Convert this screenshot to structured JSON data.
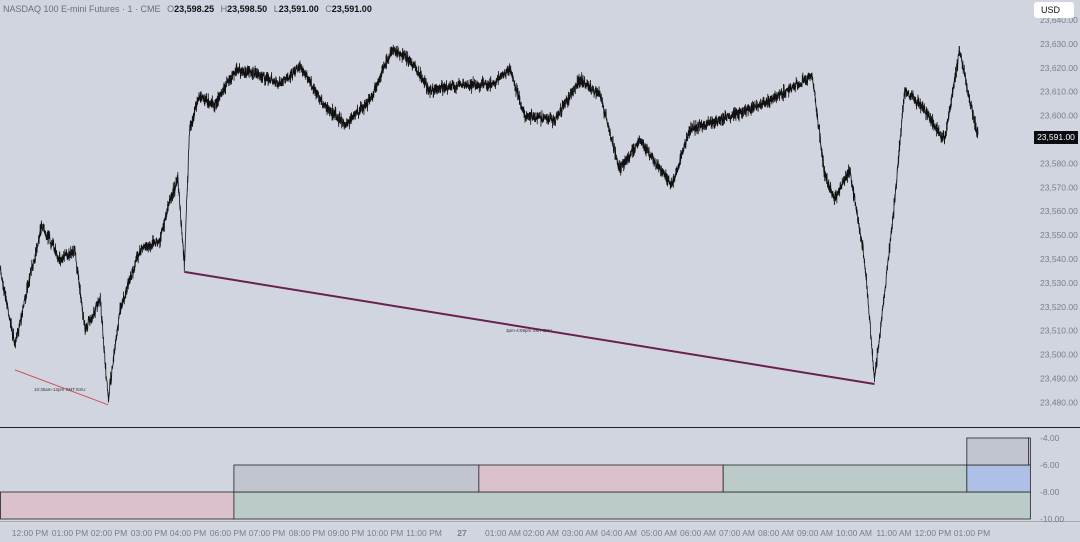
{
  "header": {
    "symbol": "NASDAQ 100 E-mini Futures · 1 · CME",
    "open_label": "O",
    "open": "23,598.25",
    "high_label": "H",
    "high": "23,598.50",
    "low_label": "L",
    "low": "23,591.00",
    "close_label": "C",
    "close": "23,591.00"
  },
  "currency": "USD",
  "last_price": "23,591.00",
  "colors": {
    "background": "#d1d5e0",
    "candles": "#111111",
    "trend_short": "#d0505a",
    "trend_long": "#6b1f4f",
    "box_pink": "#dbc1cb",
    "box_green": "#bacbca",
    "box_gray": "#c1c5d0",
    "box_blue": "#afc0e6"
  },
  "chart_data": {
    "type": "line",
    "price_axis": {
      "min": 23480,
      "max": 23640,
      "ticks": [
        "23,640.00",
        "23,630.00",
        "23,620.00",
        "23,610.00",
        "23,600.00",
        "23,580.00",
        "23,570.00",
        "23,560.00",
        "23,550.00",
        "23,540.00",
        "23,530.00",
        "23,520.00",
        "23,510.00",
        "23,500.00",
        "23,490.00",
        "23,480.00"
      ]
    },
    "time_axis": [
      "12:00 PM",
      "01:00 PM",
      "02:00 PM",
      "03:00 PM",
      "04:00 PM",
      "06:00 PM",
      "07:00 PM",
      "08:00 PM",
      "09:00 PM",
      "10:00 PM",
      "11:00 PM",
      "27",
      "01:00 AM",
      "02:00 AM",
      "03:00 AM",
      "04:00 AM",
      "05:00 AM",
      "06:00 AM",
      "07:00 AM",
      "08:00 AM",
      "09:00 AM",
      "10:00 AM",
      "11:00 AM",
      "12:00 PM",
      "01:00 PM"
    ],
    "series": [
      {
        "values": [
          [
            "26 11:15",
            23535.4
          ],
          [
            "26 11:37",
            23504.0
          ],
          [
            "26 11:52",
            23522.8
          ],
          [
            "26 12:18",
            23554.2
          ],
          [
            "26 12:46",
            23539.6
          ],
          [
            "26 13:08",
            23543.8
          ],
          [
            "26 13:24",
            23510.3
          ],
          [
            "26 13:47",
            23522.8
          ],
          [
            "26 13:59",
            23481.0
          ],
          [
            "26 14:17",
            23518.7
          ],
          [
            "26 14:47",
            23543.8
          ],
          [
            "26 15:18",
            23548.0
          ],
          [
            "26 15:33",
            23564.7
          ],
          [
            "26 15:45",
            23573.1
          ],
          [
            "26 15:55",
            23537.5
          ],
          [
            "26 16:03",
            23594.0
          ],
          [
            "26 16:18",
            23608.6
          ],
          [
            "26 16:41",
            23604.4
          ],
          [
            "26 18:11",
            23619.1
          ],
          [
            "26 18:49",
            23617.0
          ],
          [
            "26 19:19",
            23612.8
          ],
          [
            "26 19:50",
            23621.2
          ],
          [
            "26 20:20",
            23606.5
          ],
          [
            "26 20:59",
            23596.1
          ],
          [
            "26 21:37",
            23606.5
          ],
          [
            "26 22:10",
            23627.4
          ],
          [
            "26 22:38",
            23623.3
          ],
          [
            "26 23:08",
            23610.7
          ],
          [
            "26 23:54",
            23612.8
          ],
          [
            "27 00:40",
            23612.8
          ],
          [
            "27 01:10",
            23619.1
          ],
          [
            "27 01:33",
            23600.3
          ],
          [
            "27 02:19",
            23598.2
          ],
          [
            "27 02:57",
            23614.9
          ],
          [
            "27 03:28",
            23608.6
          ],
          [
            "27 03:58",
            23577.2
          ],
          [
            "27 04:29",
            23589.8
          ],
          [
            "27 05:18",
            23571.0
          ],
          [
            "27 05:45",
            23594.0
          ],
          [
            "27 06:31",
            23598.2
          ],
          [
            "27 07:32",
            23604.4
          ],
          [
            "27 08:18",
            23610.7
          ],
          [
            "27 08:52",
            23617.0
          ],
          [
            "27 09:11",
            23575.1
          ],
          [
            "27 09:26",
            23564.7
          ],
          [
            "27 09:49",
            23577.2
          ],
          [
            "27 10:12",
            23539.6
          ],
          [
            "27 10:27",
            23489.4
          ],
          [
            "27 10:43",
            23527.0
          ],
          [
            "27 10:58",
            23564.7
          ],
          [
            "27 11:13",
            23610.7
          ],
          [
            "27 11:44",
            23602.3
          ],
          [
            "27 12:14",
            23589.8
          ],
          [
            "27 12:37",
            23627.4
          ],
          [
            "27 12:52",
            23606.5
          ],
          [
            "27 13:05",
            23591.9
          ]
        ]
      }
    ],
    "trend_lines": [
      {
        "label": "10:30am-12pm SMT ESU",
        "from": [
          "26 11:37",
          23493.6
        ],
        "to": [
          "26 13:59",
          23479.0
        ],
        "color": "#d0505a"
      },
      {
        "label": "3pm-4:59pm SMT ESU",
        "from": [
          "26 15:55",
          23534.6
        ],
        "to": [
          "27 10:27",
          23487.7
        ],
        "color": "#6b1f4f"
      }
    ],
    "lower_pane": {
      "axis": {
        "min": -10,
        "max": -3.3,
        "ticks": [
          "-4.00",
          "-6.00",
          "-8.00",
          "-10.00"
        ]
      },
      "boxes": [
        {
          "from": "26 11:15",
          "to": "26 18:09",
          "top": -8,
          "bottom": -10,
          "color": "pink"
        },
        {
          "from": "26 18:09",
          "to": "27 14:25",
          "top": -8,
          "bottom": -10,
          "color": "green"
        },
        {
          "from": "26 18:09",
          "to": "27 00:23",
          "top": -6,
          "bottom": -8,
          "color": "gray"
        },
        {
          "from": "27 00:23",
          "to": "27 06:36",
          "top": -6,
          "bottom": -8,
          "color": "pink"
        },
        {
          "from": "27 06:36",
          "to": "27 12:48",
          "top": -6,
          "bottom": -8,
          "color": "green"
        },
        {
          "from": "27 12:48",
          "to": "27 14:25",
          "top": -6,
          "bottom": -8,
          "color": "blue"
        },
        {
          "from": "27 12:48",
          "to": "27 14:22",
          "top": -4,
          "bottom": -6,
          "color": "gray"
        },
        {
          "from": "27 14:22",
          "to": "27 14:25",
          "top": -4,
          "bottom": -6,
          "color": "pink"
        }
      ]
    }
  }
}
